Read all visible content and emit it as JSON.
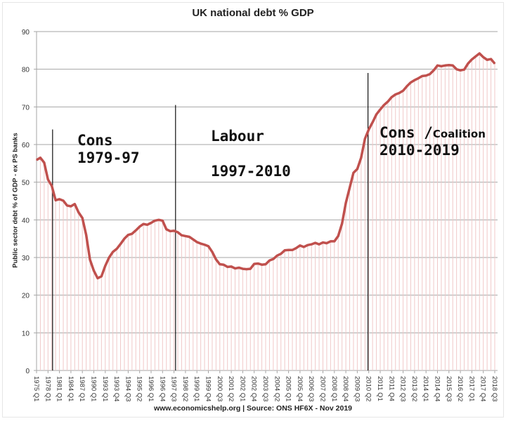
{
  "chart_data": {
    "type": "line",
    "title": "UK national debt % GDP",
    "ylabel": "Public sector debt % of GDP - ex PS banks",
    "xlabel": "",
    "ylim": [
      0,
      90
    ],
    "yticks": [
      0,
      10,
      20,
      30,
      40,
      50,
      60,
      70,
      80,
      90
    ],
    "grid": true,
    "line_color": "#c0504d",
    "dropline_color": "#f0c8c8",
    "tick_labels": [
      "1975 Q1",
      "1978 Q1",
      "1981 Q1",
      "1984 Q1",
      "1987 Q1",
      "1990 Q1",
      "1993 Q1",
      "1993 Q4",
      "1994 Q3",
      "1995 Q2",
      "1996 Q1",
      "1996 Q4",
      "1997 Q3",
      "1998 Q2",
      "1999 Q1",
      "1999 Q4",
      "2000 Q3",
      "2001 Q2",
      "2002 Q1",
      "2002 Q4",
      "2003 Q3",
      "2004 Q2",
      "2005 Q1",
      "2005 Q4",
      "2006 Q3",
      "2007 Q2",
      "2008 Q1",
      "2008 Q4",
      "2009 Q3",
      "2010 Q2",
      "2011 Q1",
      "2011 Q4",
      "2012 Q3",
      "2013 Q2",
      "2014 Q1",
      "2014 Q4",
      "2015 Q3",
      "2016 Q2",
      "2017 Q1",
      "2017 Q4",
      "2018 Q3"
    ],
    "points_per_tick": 3,
    "values": [
      55.9,
      56.5,
      55.2,
      50.7,
      49,
      45.2,
      45.5,
      45.1,
      43.8,
      43.6,
      44.2,
      42,
      40.5,
      36,
      29.4,
      26.5,
      24.5,
      25,
      27.8,
      30,
      31.5,
      32.3,
      33.6,
      35,
      36,
      36.3,
      37.2,
      38.2,
      38.9,
      38.7,
      39.2,
      39.8,
      40,
      39.8,
      37.5,
      37,
      37.1,
      36.7,
      35.9,
      35.7,
      35.5,
      34.8,
      34.1,
      33.7,
      33.4,
      33,
      31.5,
      29.5,
      28.2,
      28.1,
      27.5,
      27.6,
      27.1,
      27.3,
      27,
      26.9,
      27,
      28.3,
      28.4,
      28.1,
      28.2,
      29.2,
      29.6,
      30.5,
      31,
      31.9,
      32,
      32,
      32.5,
      33.2,
      32.8,
      33.3,
      33.5,
      33.9,
      33.5,
      34,
      33.8,
      34.3,
      34.3,
      35.7,
      39,
      44.5,
      48.5,
      52.5,
      53.5,
      56.5,
      61.5,
      64,
      65.9,
      68,
      69.3,
      70.5,
      71.4,
      72.6,
      73.3,
      73.7,
      74.3,
      75.5,
      76.5,
      77.1,
      77.6,
      78.2,
      78.3,
      78.7,
      79.7,
      81,
      80.8,
      81,
      81.1,
      81,
      80,
      79.7,
      79.9,
      81.5,
      82.6,
      83.4,
      84.2,
      83.2,
      82.5,
      82.7,
      81.5
    ],
    "markers": [
      {
        "at_point": 4.2,
        "top": 64
      },
      {
        "at_point": 36.4,
        "top": 70.5
      },
      {
        "at_point": 86.8,
        "top": 79
      }
    ],
    "annotations": {
      "cons1": "Cons\n1979-97",
      "labour": "Labour",
      "labour_years": "1997-2010",
      "cons2": "Cons ",
      "cons2_slash": "/",
      "cons2_small": "Coalition",
      "cons2_years": "2010-2019"
    },
    "footer": "www.economicshelp.org | Source: ONS HF6X - Nov  2019"
  }
}
